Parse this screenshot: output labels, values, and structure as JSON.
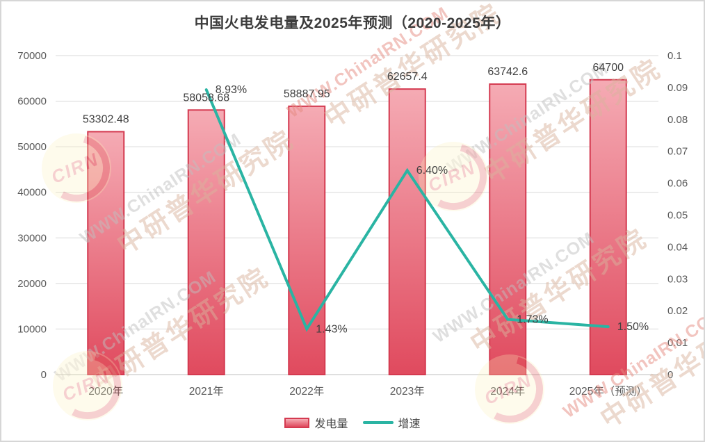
{
  "title": "中国火电发电量及2025年预测（2020-2025年）",
  "legend": {
    "bar_label": "发电量",
    "line_label": "增速"
  },
  "watermark": {
    "latin": "WWW.ChinaIRN.COM",
    "cn": "中研普华研究院",
    "badge": "CIRN"
  },
  "colors": {
    "bar_fill_top": "#f5abb4",
    "bar_fill_bottom": "#e04a5e",
    "bar_border": "#d43a50",
    "line": "#2ab4a3",
    "title_text": "#3c3c3c",
    "axis_text": "#595959",
    "label_text": "#3f3f3f",
    "grid": "#d9d9d9",
    "axis_line": "#bfbfbf",
    "frame_border": "#d6d6d6",
    "watermark_gray": "#bfbfbf",
    "watermark_red": "#e4897e",
    "watermark_tan": "#d8b29c",
    "badge_bg": "#fcf0bb",
    "badge_red": "#e05757"
  },
  "chart_data": {
    "type": "bar",
    "title": "中国火电发电量及2025年预测（2020-2025年）",
    "categories": [
      "2020年",
      "2021年",
      "2022年",
      "2023年",
      "2024年",
      "2025年（预测）"
    ],
    "series": [
      {
        "name": "发电量",
        "type": "bar",
        "axis": "left",
        "values": [
          53302.48,
          58058.68,
          58887.95,
          62657.4,
          63742.6,
          64700
        ],
        "data_labels": [
          "53302.48",
          "58058.68",
          "58887.95",
          "62657.4",
          "63742.6",
          "64700"
        ]
      },
      {
        "name": "增速",
        "type": "line",
        "axis": "right",
        "values": [
          null,
          0.0893,
          0.0143,
          0.064,
          0.0173,
          0.015
        ],
        "data_labels": [
          null,
          "8.93%",
          "1.43%",
          "6.40%",
          "1.73%",
          "1.50%"
        ]
      }
    ],
    "left_axis": {
      "min": 0,
      "max": 70000,
      "step": 10000,
      "tick_labels": [
        "0",
        "10000",
        "20000",
        "30000",
        "40000",
        "50000",
        "60000",
        "70000"
      ]
    },
    "right_axis": {
      "min": 0,
      "max": 0.1,
      "step": 0.01,
      "tick_labels": [
        "0",
        "0.01",
        "0.02",
        "0.03",
        "0.04",
        "0.05",
        "0.06",
        "0.07",
        "0.08",
        "0.09",
        "0.1"
      ]
    },
    "grid": true,
    "legend_position": "bottom"
  }
}
